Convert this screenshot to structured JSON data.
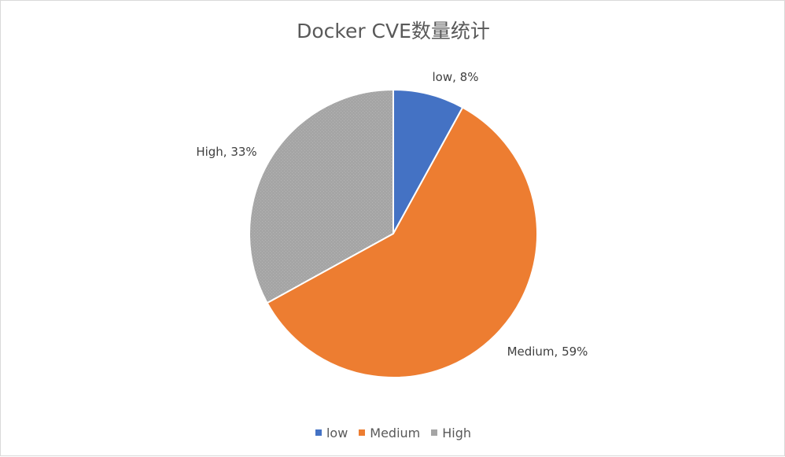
{
  "chart_data": {
    "type": "pie",
    "title": "Docker CVE数量统计",
    "categories": [
      "low",
      "Medium",
      "High"
    ],
    "values": [
      8,
      59,
      33
    ],
    "data_labels": [
      "low, 8%",
      "Medium, 59%",
      "High, 33%"
    ],
    "colors": [
      "#4472C4",
      "#ED7D31",
      "#A5A5A5"
    ],
    "legend_position": "bottom"
  }
}
